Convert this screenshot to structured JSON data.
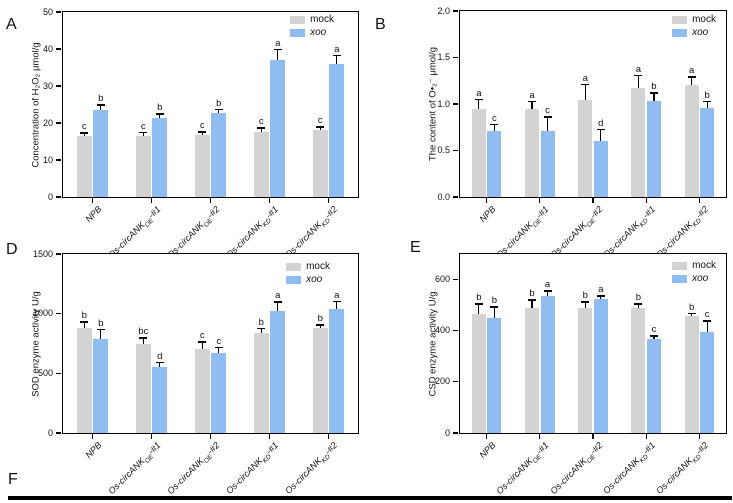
{
  "panels": {
    "a": "A",
    "b": "B",
    "d": "D",
    "e": "E",
    "f": "F"
  },
  "colors": {
    "mock": "#d3d3d3",
    "xoo": "#8fbdf2",
    "axis": "#000000",
    "background": "#ffffff"
  },
  "legend": {
    "items": [
      {
        "label": "mock",
        "color_key": "mock",
        "italic": false
      },
      {
        "label": "xoo",
        "color_key": "xoo",
        "italic": true
      }
    ]
  },
  "chart_data": [
    {
      "panel": "A",
      "type": "bar",
      "title": "",
      "xlabel": "",
      "ylabel": "Concentration of H₂O₂ μmol/g",
      "ylim": [
        0,
        50
      ],
      "grid": false,
      "legend_position": "top-right",
      "legend_entries": [
        "mock",
        "xoo"
      ],
      "yticks": [
        {
          "value": 0,
          "label": "0"
        },
        {
          "value": 10,
          "label": "10"
        },
        {
          "value": 20,
          "label": "20"
        },
        {
          "value": 30,
          "label": "30"
        },
        {
          "value": 40,
          "label": "40"
        },
        {
          "value": 50,
          "label": "50"
        }
      ],
      "categories": [
        "NPB",
        "Os-circANK_OE-#1",
        "Os-circANK_OE-#2",
        "Os-circANK_KD-#1",
        "Os-circANK_KD-#2"
      ],
      "categories_rich": [
        {
          "pre": "NPB"
        },
        {
          "pre": "Os-circANK",
          "sub": "OE",
          "post": "-#1"
        },
        {
          "pre": "Os-circANK",
          "sub": "OE",
          "post": "-#2"
        },
        {
          "pre": "Os-circANK",
          "sub": "KD",
          "post": "-#1"
        },
        {
          "pre": "Os-circANK",
          "sub": "KD",
          "post": "-#2"
        }
      ],
      "series": [
        {
          "name": "mock",
          "values": [
            16.5,
            16.5,
            16.8,
            17.7,
            18.0
          ],
          "errors": [
            0.6,
            0.7,
            0.6,
            0.8,
            0.7
          ],
          "letters": [
            "c",
            "c",
            "c",
            "c",
            "c"
          ]
        },
        {
          "name": "xoo",
          "values": [
            23.6,
            21.3,
            22.6,
            37.1,
            36.0
          ],
          "errors": [
            1.1,
            0.9,
            0.8,
            2.5,
            2.0
          ],
          "letters": [
            "b",
            "b",
            "b",
            "a",
            "a"
          ]
        }
      ]
    },
    {
      "panel": "B",
      "type": "bar",
      "title": "",
      "xlabel": "",
      "ylabel": "The content of O•₂⁻ μmol/g",
      "ylim": [
        0,
        2.0
      ],
      "grid": false,
      "legend_position": "top-right",
      "legend_entries": [
        "mock",
        "xoo"
      ],
      "yticks": [
        {
          "value": 0,
          "label": "0.0"
        },
        {
          "value": 0.5,
          "label": "0.5"
        },
        {
          "value": 1.0,
          "label": "1.0"
        },
        {
          "value": 1.5,
          "label": "1.5"
        },
        {
          "value": 2.0,
          "label": "2.0"
        }
      ],
      "categories": [
        "NPB",
        "Os-circANK_OE-#1",
        "Os-circANK_OE-#2",
        "Os-circANK_KD-#1",
        "Os-circANK_KD-#2"
      ],
      "categories_rich": [
        {
          "pre": "NPB"
        },
        {
          "pre": "Os-circANK",
          "sub": "OE",
          "post": "-#1"
        },
        {
          "pre": "Os-circANK",
          "sub": "OE",
          "post": "-#2"
        },
        {
          "pre": "Os-circANK",
          "sub": "KD",
          "post": "-#1"
        },
        {
          "pre": "Os-circANK",
          "sub": "KD",
          "post": "-#2"
        }
      ],
      "series": [
        {
          "name": "mock",
          "values": [
            0.95,
            0.95,
            1.04,
            1.17,
            1.2
          ],
          "errors": [
            0.09,
            0.07,
            0.16,
            0.13,
            0.08
          ],
          "letters": [
            "a",
            "a",
            "a",
            "a",
            "a"
          ]
        },
        {
          "name": "xoo",
          "values": [
            0.71,
            0.71,
            0.6,
            1.03,
            0.96
          ],
          "errors": [
            0.06,
            0.14,
            0.12,
            0.08,
            0.06
          ],
          "letters": [
            "c",
            "c",
            "d",
            "b",
            "b"
          ]
        }
      ]
    },
    {
      "panel": "D",
      "type": "bar",
      "title": "",
      "xlabel": "",
      "ylabel": "SOD enzyme activity U/g",
      "ylim": [
        0,
        1500
      ],
      "grid": false,
      "legend_position": "top-right",
      "legend_entries": [
        "mock",
        "xoo"
      ],
      "yticks": [
        {
          "value": 0,
          "label": "0"
        },
        {
          "value": 500,
          "label": "500"
        },
        {
          "value": 1000,
          "label": "1000"
        },
        {
          "value": 1500,
          "label": "1500"
        }
      ],
      "categories": [
        "NPB",
        "Os-circANK_OE-#1",
        "Os-circANK_OE-#2",
        "Os-circANK_KD-#1",
        "Os-circANK_KD-#2"
      ],
      "categories_rich": [
        {
          "pre": "NPB"
        },
        {
          "pre": "Os-circANK",
          "sub": "OE",
          "post": "-#1"
        },
        {
          "pre": "Os-circANK",
          "sub": "OE",
          "post": "-#2"
        },
        {
          "pre": "Os-circANK",
          "sub": "KD",
          "post": "-#1"
        },
        {
          "pre": "Os-circANK",
          "sub": "KD",
          "post": "-#2"
        }
      ],
      "series": [
        {
          "name": "mock",
          "values": [
            880,
            748,
            705,
            840,
            880
          ],
          "errors": [
            45,
            40,
            50,
            30,
            20
          ],
          "letters": [
            "b",
            "bc",
            "c",
            "b",
            "b"
          ]
        },
        {
          "name": "xoo",
          "values": [
            785,
            555,
            672,
            1020,
            1040
          ],
          "errors": [
            75,
            30,
            40,
            70,
            55
          ],
          "letters": [
            "b",
            "d",
            "c",
            "a",
            "a"
          ]
        }
      ]
    },
    {
      "panel": "E",
      "type": "bar",
      "title": "",
      "xlabel": "",
      "ylabel": "CSD enzyme activity U/g",
      "ylim": [
        0,
        700
      ],
      "grid": false,
      "legend_position": "top-right",
      "legend_entries": [
        "mock",
        "xoo"
      ],
      "yticks": [
        {
          "value": 0,
          "label": "0"
        },
        {
          "value": 200,
          "label": "200"
        },
        {
          "value": 400,
          "label": "400"
        },
        {
          "value": 600,
          "label": "600"
        }
      ],
      "categories": [
        "NPB",
        "Os-circANK_OE-#1",
        "Os-circANK_OE-#2",
        "Os-circANK_KD-#1",
        "Os-circANK_KD-#2"
      ],
      "categories_rich": [
        {
          "pre": "NPB"
        },
        {
          "pre": "Os-circANK",
          "sub": "OE",
          "post": "-#1"
        },
        {
          "pre": "Os-circANK",
          "sub": "OE",
          "post": "-#2"
        },
        {
          "pre": "Os-circANK",
          "sub": "KD",
          "post": "-#1"
        },
        {
          "pre": "Os-circANK",
          "sub": "KD",
          "post": "-#2"
        }
      ],
      "series": [
        {
          "name": "mock",
          "values": [
            467,
            487,
            487,
            487,
            457
          ],
          "errors": [
            35,
            30,
            22,
            15,
            8
          ],
          "letters": [
            "b",
            "b",
            "b",
            "b",
            "b"
          ]
        },
        {
          "name": "xoo",
          "values": [
            450,
            537,
            523,
            368,
            396
          ],
          "errors": [
            40,
            15,
            10,
            8,
            40
          ],
          "letters": [
            "b",
            "a",
            "a",
            "c",
            "c"
          ]
        }
      ]
    }
  ]
}
